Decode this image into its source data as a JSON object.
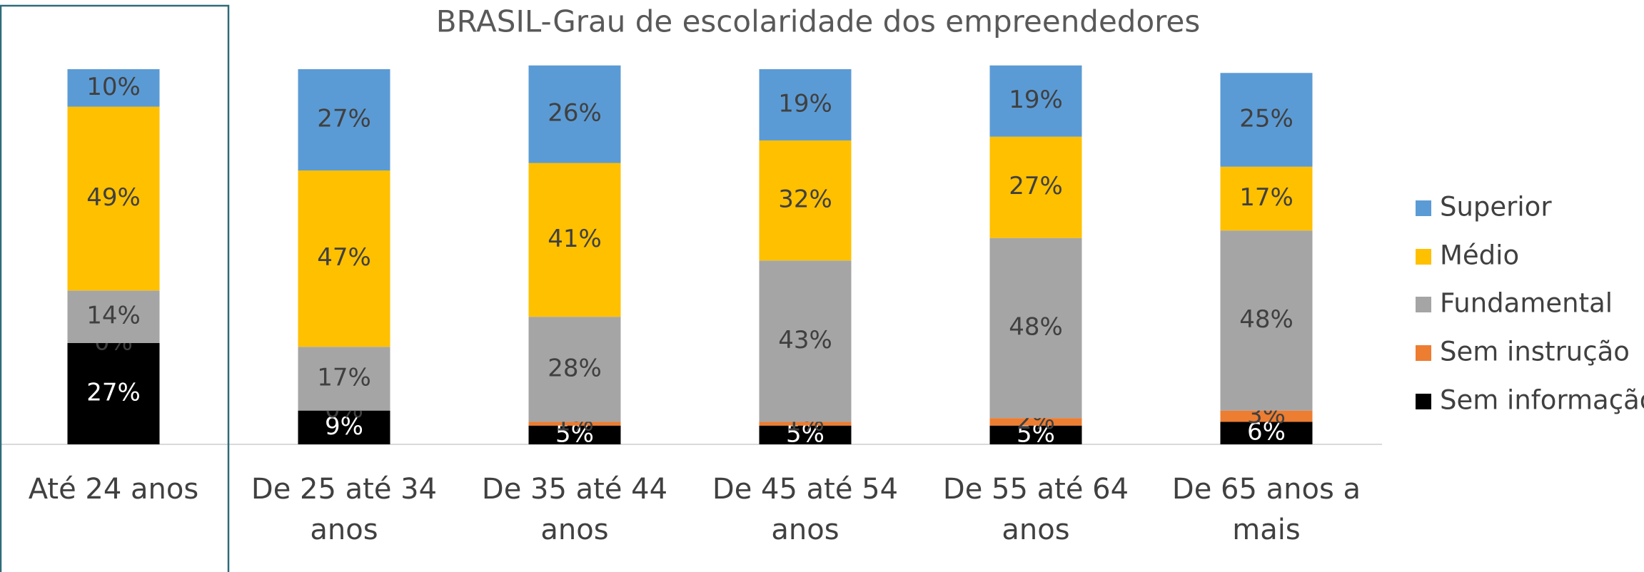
{
  "chart_data": {
    "type": "stacked_bar",
    "title": "BRASIL-Grau de escolaridade dos empreendedores",
    "categories": [
      "Até 24 anos",
      "De 25 até 34 anos",
      "De 35 até 44 anos",
      "De 45 até 54 anos",
      "De 55 até 64 anos",
      "De 65 anos a mais"
    ],
    "ylim": [
      0,
      100
    ],
    "legend": "right",
    "series": [
      {
        "name": "Sem informação",
        "color": "#000000",
        "values": [
          27,
          9,
          5,
          5,
          5,
          6
        ],
        "value_labels": [
          "27%",
          "9%",
          "5%",
          "5%",
          "5%",
          "6%"
        ]
      },
      {
        "name": "Sem instrução",
        "color": "#ed7d31",
        "values": [
          0,
          0,
          1,
          1,
          2,
          3
        ],
        "value_labels": [
          "0%",
          "0%",
          "1%",
          "1%",
          "2%",
          "3%"
        ]
      },
      {
        "name": "Fundamental",
        "color": "#a5a5a5",
        "values": [
          14,
          17,
          28,
          43,
          48,
          48
        ],
        "value_labels": [
          "14%",
          "17%",
          "28%",
          "43%",
          "48%",
          "48%"
        ]
      },
      {
        "name": "Médio",
        "color": "#ffc000",
        "values": [
          49,
          47,
          41,
          32,
          27,
          17
        ],
        "value_labels": [
          "49%",
          "47%",
          "41%",
          "32%",
          "27%",
          "17%"
        ]
      },
      {
        "name": "Superior",
        "color": "#5b9bd5",
        "values": [
          10,
          27,
          26,
          19,
          19,
          25
        ],
        "value_labels": [
          "10%",
          "27%",
          "26%",
          "19%",
          "19%",
          "25%"
        ]
      }
    ]
  }
}
